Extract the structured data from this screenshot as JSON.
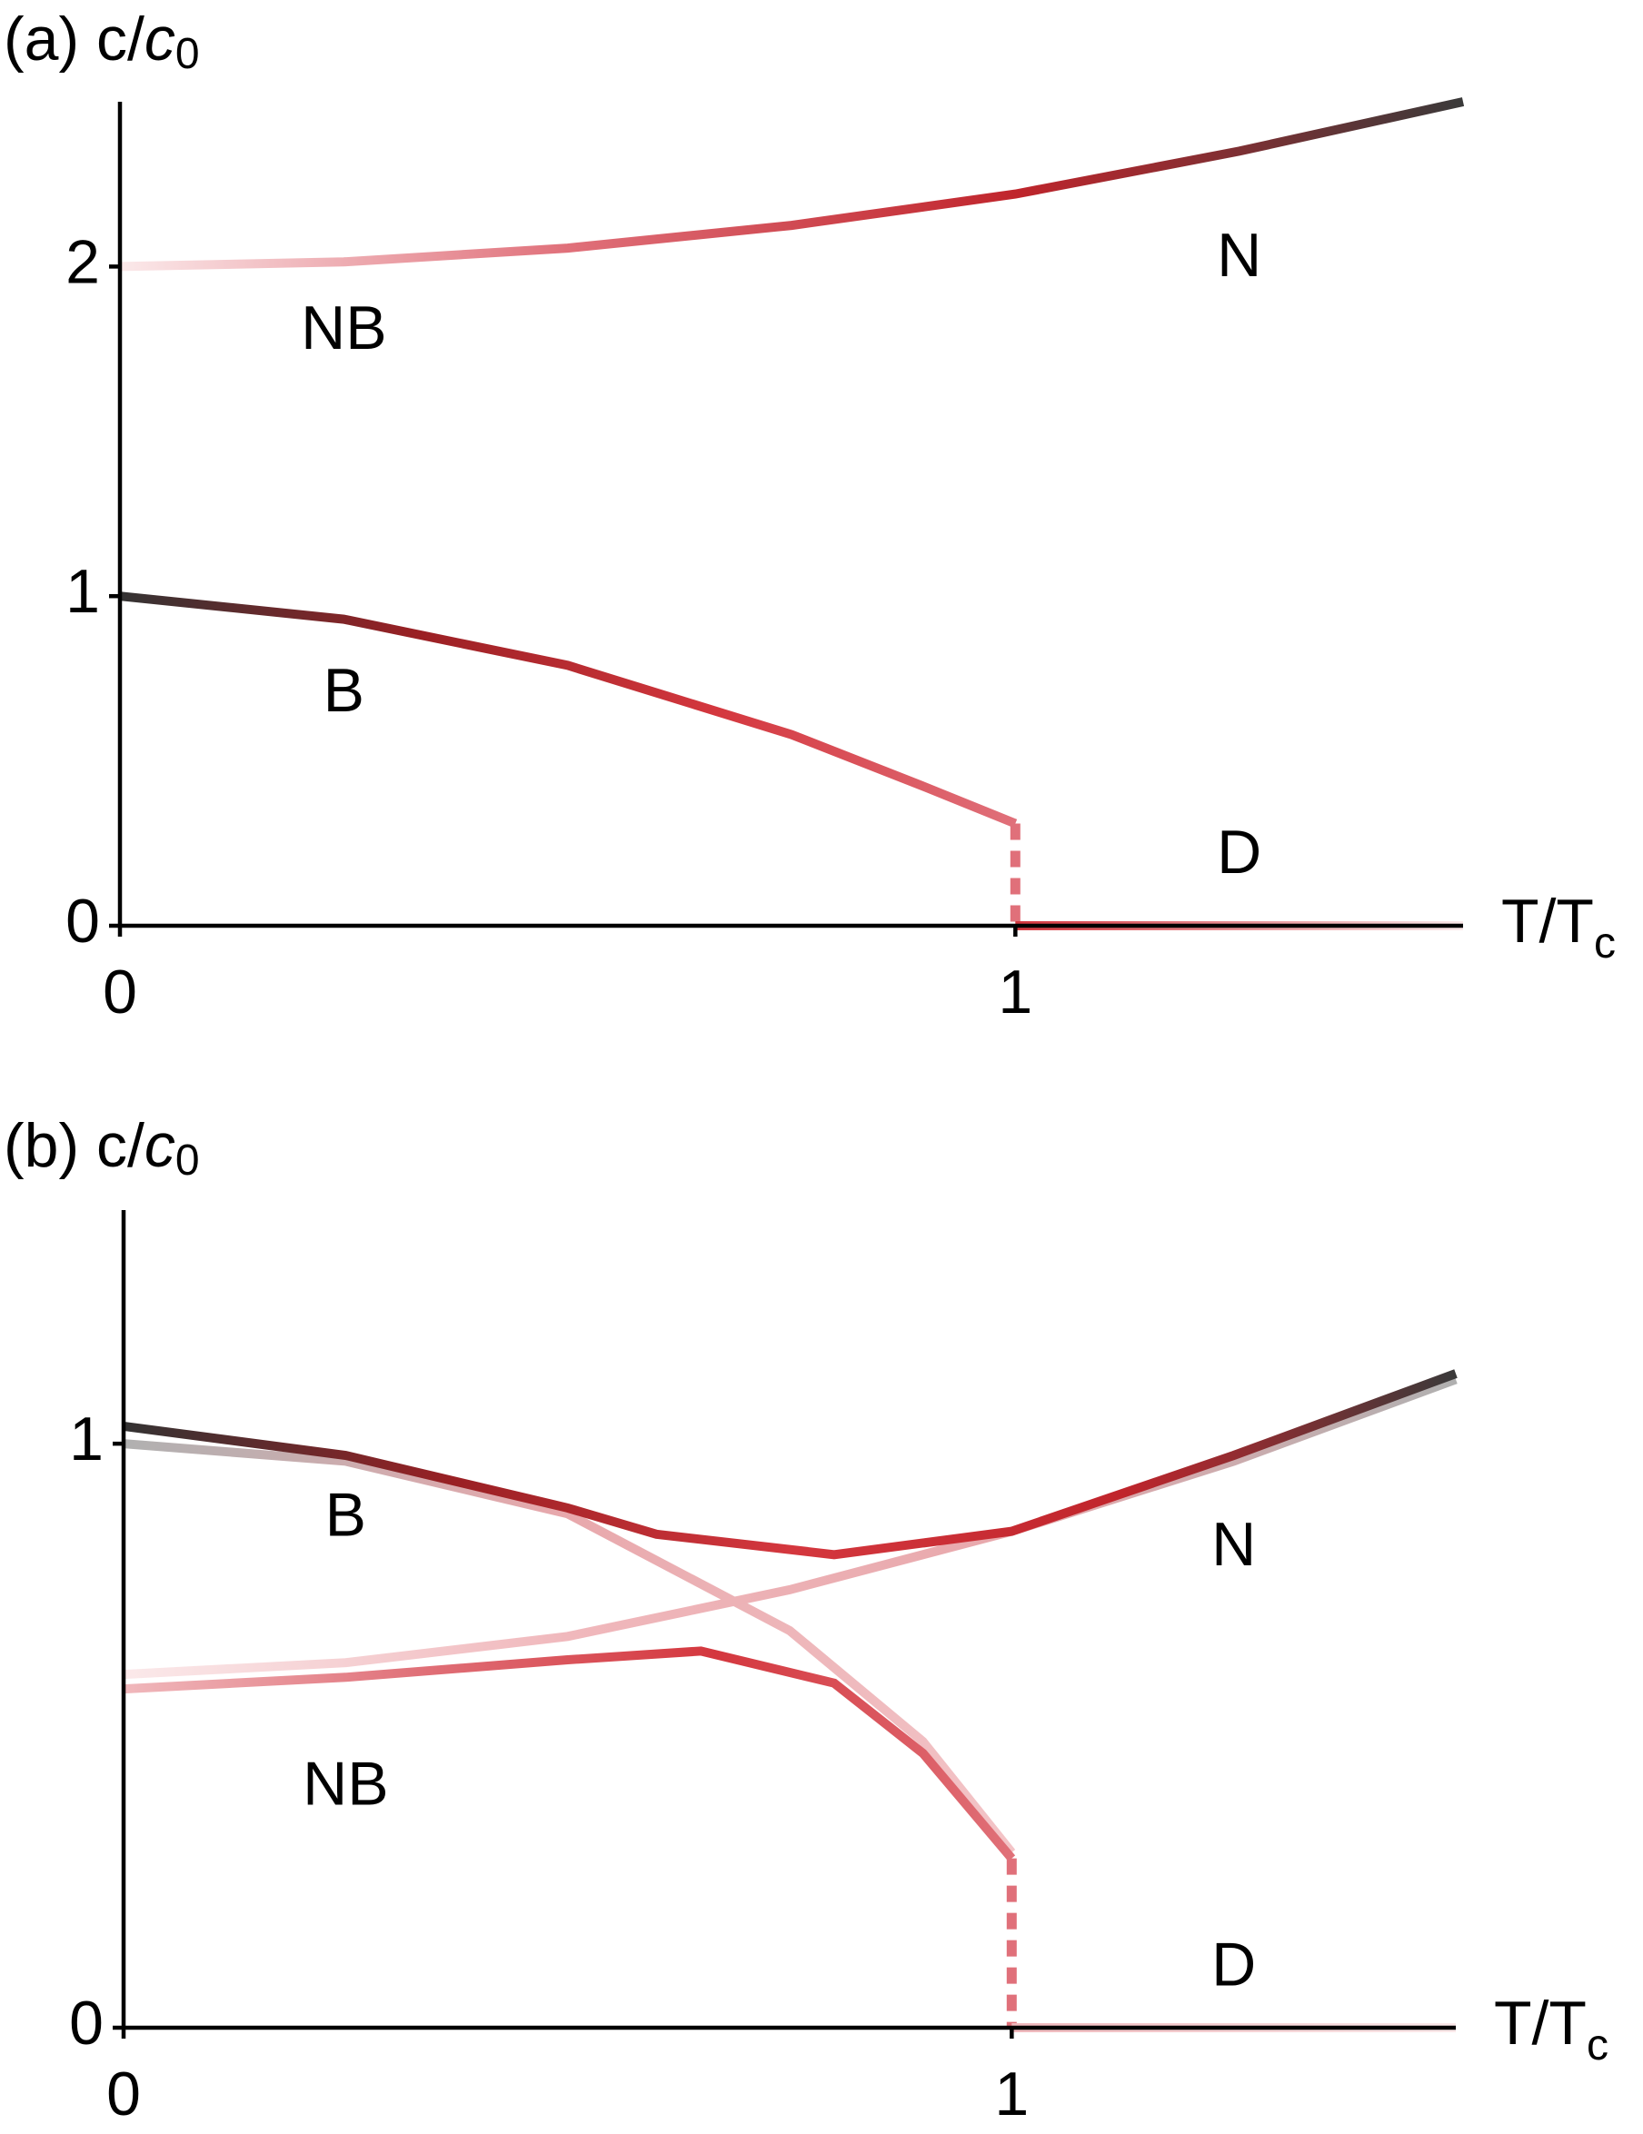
{
  "chart_data": [
    {
      "type": "line",
      "ylabel": "(a) c/",
      "ylabel_italic": "c",
      "ylabel_subscript": "0",
      "xlabel": "T/T",
      "xlabel_subscript": "c",
      "xlim": [
        0,
        1.5
      ],
      "ylim": [
        0,
        2.5
      ],
      "xticks": [
        0,
        1
      ],
      "yticks": [
        0,
        1,
        2
      ],
      "series": [
        {
          "x": [
            0,
            0.25,
            0.5,
            0.75,
            1,
            1.25,
            1.5
          ],
          "values": [
            2,
            2.014,
            2.056,
            2.125,
            2.22,
            2.35,
            2.5
          ],
          "colors": [
            "#fbe9ea",
            "#e0707a",
            "#c0252c",
            "#3a3a3a"
          ]
        },
        {
          "x": [
            0,
            0.25,
            0.5,
            0.75,
            0.9,
            1
          ],
          "values": [
            1,
            0.93,
            0.79,
            0.58,
            0.42,
            0.31
          ],
          "colors": [
            "#333333",
            "#9a2024",
            "#d4373e",
            "#e0707a"
          ]
        },
        {
          "x": [
            1,
            1
          ],
          "values": [
            0.31,
            0
          ],
          "colors": [
            "#e0707a"
          ],
          "dashed": true
        },
        {
          "x": [
            1,
            1.5
          ],
          "values": [
            0,
            0
          ],
          "colors": [
            "#d4373e",
            "#fbe9ea"
          ]
        }
      ],
      "annotations": [
        {
          "text": "N",
          "x": 1.25,
          "y": 2.02
        },
        {
          "text": "NB",
          "x": 0.25,
          "y": 1.8
        },
        {
          "text": "B",
          "x": 0.25,
          "y": 0.7
        },
        {
          "text": "D",
          "x": 1.25,
          "y": 0.21
        }
      ]
    },
    {
      "type": "line",
      "ylabel": "(b) c/",
      "ylabel_italic": "c",
      "ylabel_subscript": "0",
      "xlabel": "T/T",
      "xlabel_subscript": "c",
      "xlim": [
        0,
        1.5
      ],
      "ylim": [
        0,
        1.4
      ],
      "xticks": [
        0,
        1
      ],
      "yticks": [
        0,
        1
      ],
      "series": [
        {
          "x": [
            0,
            0.25,
            0.5,
            0.75,
            0.9,
            1
          ],
          "values": [
            1,
            0.97,
            0.88,
            0.68,
            0.49,
            0.3
          ],
          "colors": [
            "#b0b0b0",
            "#e8a8ac",
            "#f3c4c7"
          ]
        },
        {
          "x": [
            0,
            0.25,
            0.5,
            0.75,
            1,
            1.25,
            1.5
          ],
          "values": [
            0.605,
            0.625,
            0.67,
            0.75,
            0.85,
            0.97,
            1.11
          ],
          "colors": [
            "#fbe9ea",
            "#f0b8bc",
            "#e8a8ac",
            "#b0b0b0"
          ]
        },
        {
          "x": [
            0,
            0.25,
            0.5,
            0.6,
            0.8,
            1,
            1.25,
            1.5
          ],
          "values": [
            1.03,
            0.98,
            0.89,
            0.845,
            0.81,
            0.85,
            0.98,
            1.12
          ],
          "colors": [
            "#333333",
            "#9a2024",
            "#d4373e",
            "#c0252c",
            "#3a3a3a"
          ]
        },
        {
          "x": [
            0,
            0.25,
            0.5,
            0.65,
            0.8,
            0.9,
            1
          ],
          "values": [
            0.58,
            0.6,
            0.63,
            0.645,
            0.59,
            0.47,
            0.29
          ],
          "colors": [
            "#f0b8bc",
            "#e07078",
            "#d4373e",
            "#e07078"
          ]
        },
        {
          "x": [
            1,
            1
          ],
          "values": [
            0.29,
            0
          ],
          "colors": [
            "#e0707a"
          ],
          "dashed": true
        },
        {
          "x": [
            1,
            1.5
          ],
          "values": [
            0,
            0
          ],
          "colors": [
            "#f0b8bc",
            "#fbe9ea"
          ]
        }
      ],
      "annotations": [
        {
          "text": "B",
          "x": 0.25,
          "y": 0.87
        },
        {
          "text": "N",
          "x": 1.25,
          "y": 0.82
        },
        {
          "text": "NB",
          "x": 0.25,
          "y": 0.41
        },
        {
          "text": "D",
          "x": 1.25,
          "y": 0.1
        }
      ]
    }
  ]
}
